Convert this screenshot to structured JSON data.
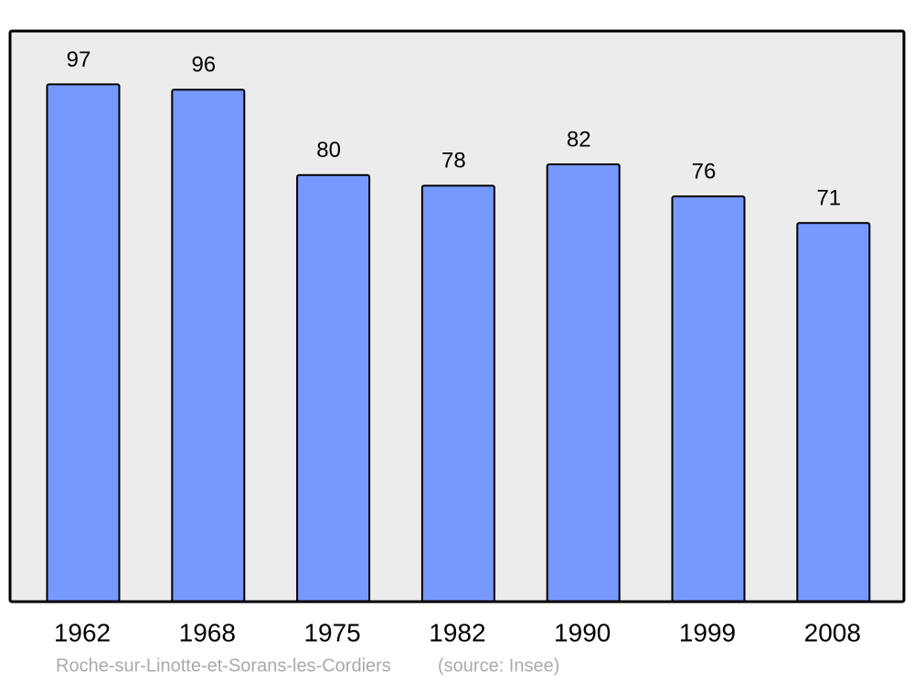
{
  "chart_data": {
    "type": "bar",
    "categories": [
      "1962",
      "1968",
      "1975",
      "1982",
      "1990",
      "1999",
      "2008"
    ],
    "values": [
      97,
      96,
      80,
      78,
      82,
      76,
      71
    ],
    "color": "#7799ff",
    "ylim": [
      0,
      107
    ],
    "title": "Roche-sur-Linotte-et-Sorans-les-Cordiers",
    "source": "(source: Insee)"
  }
}
